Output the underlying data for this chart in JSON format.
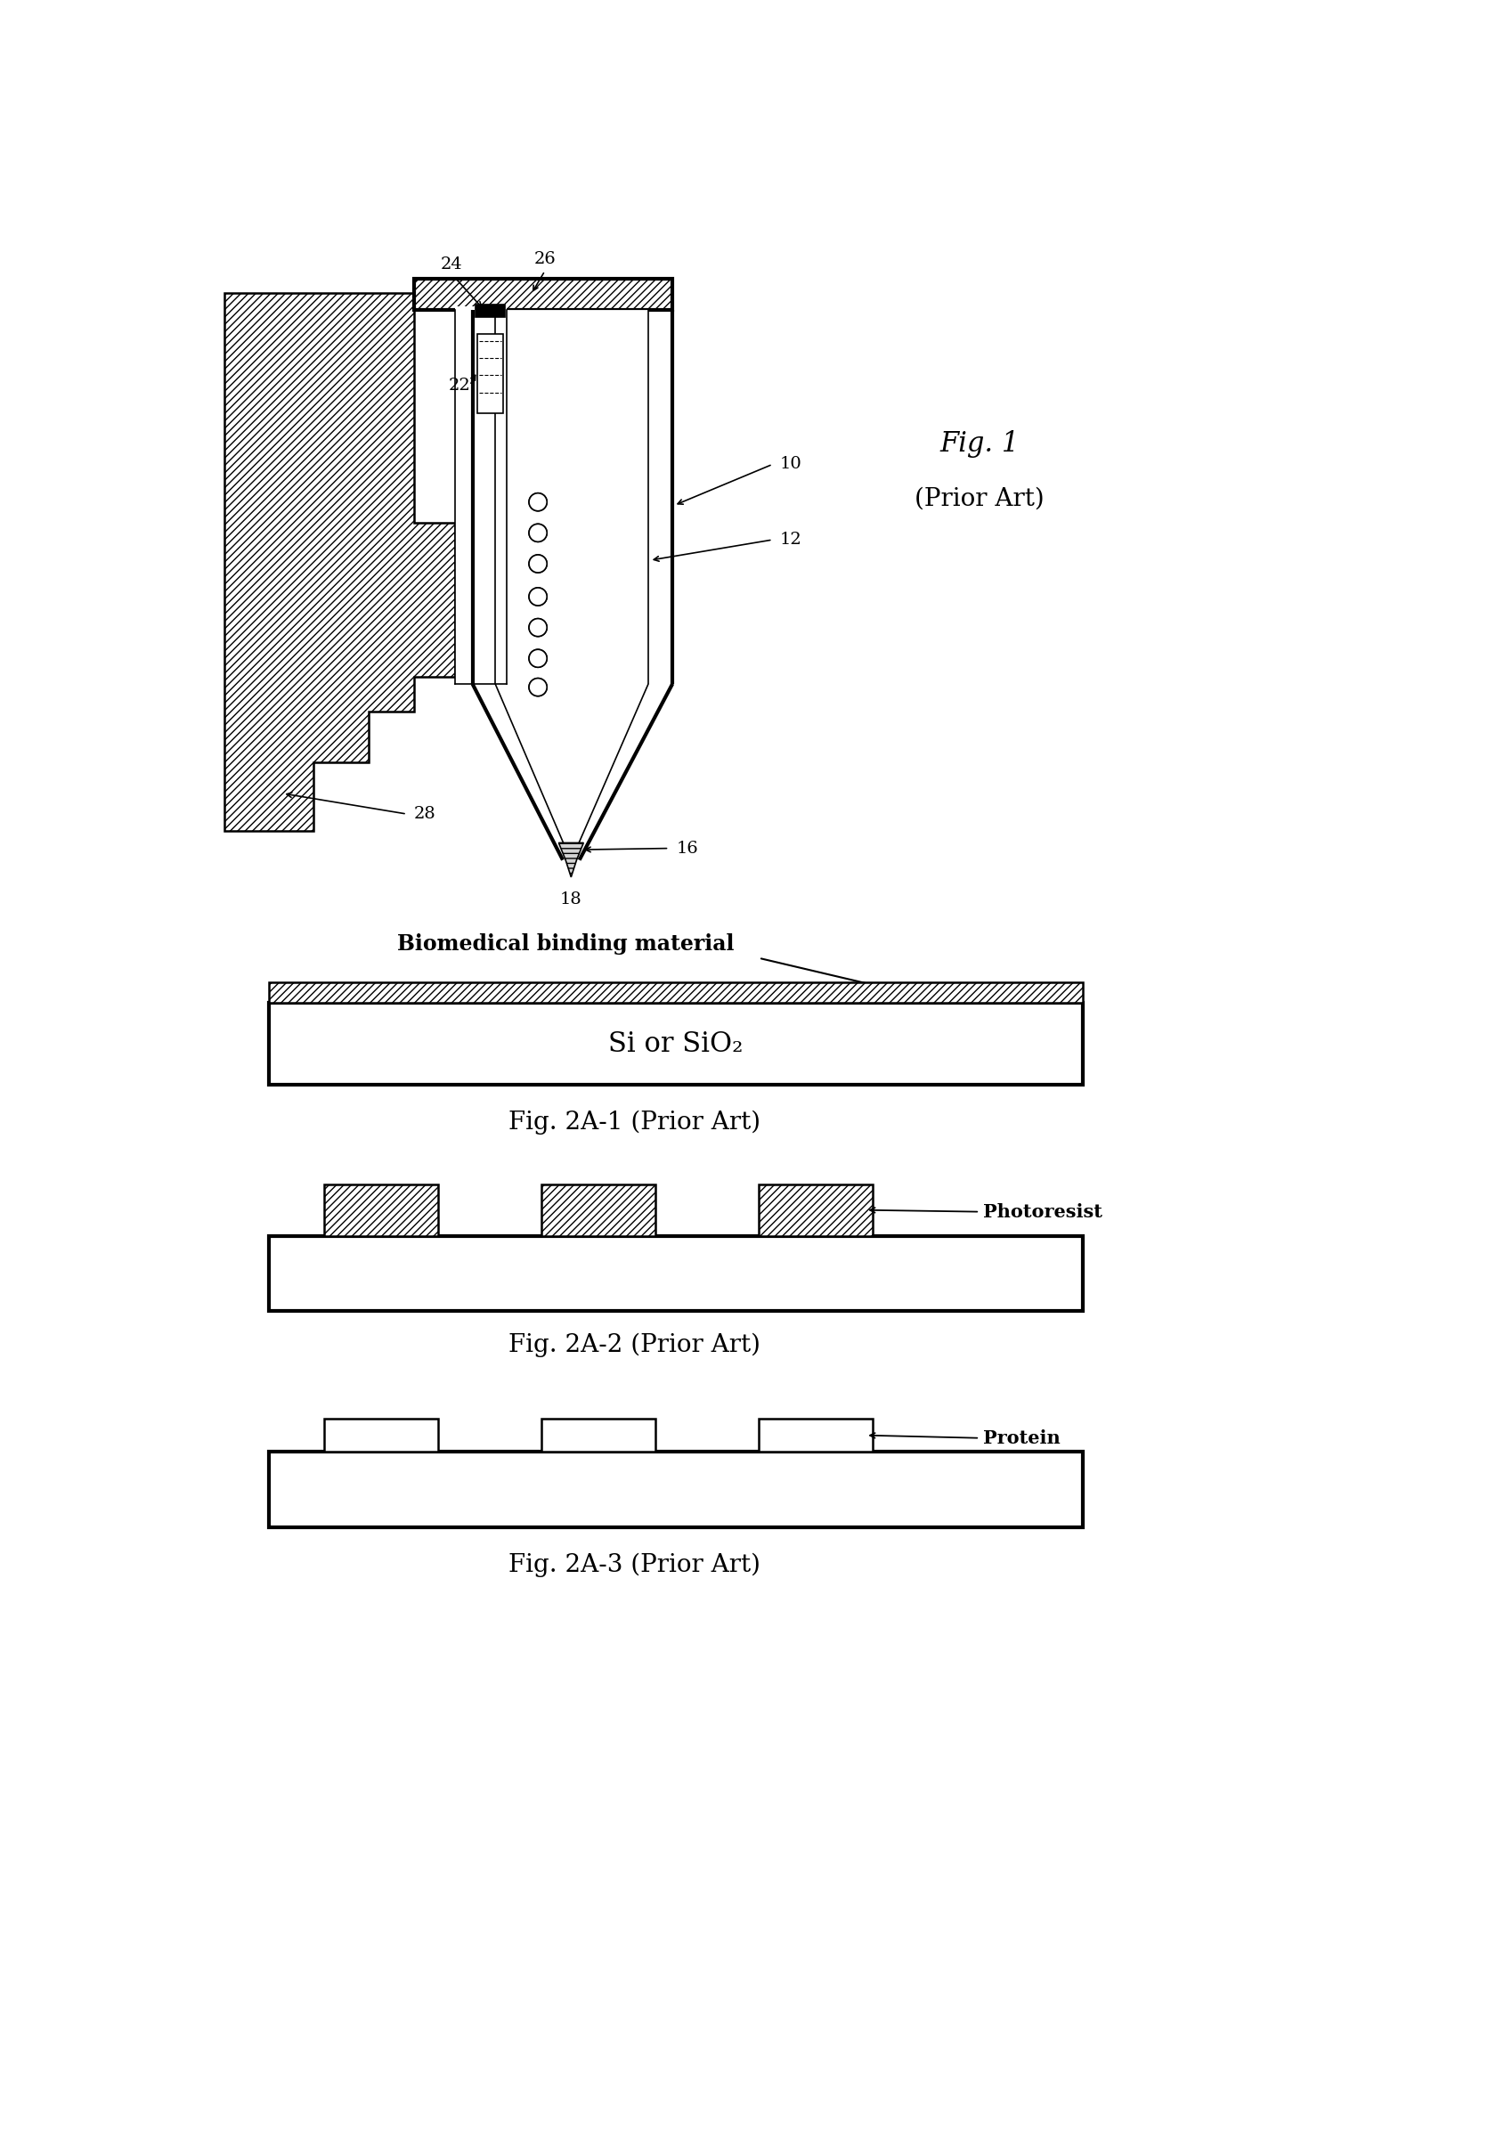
{
  "fig_width": 16.71,
  "fig_height": 23.94,
  "bg_color": "#ffffff",
  "fig1_label": "Fig. 1",
  "fig1_sublabel": "(Prior Art)",
  "fig2a1_label": "Fig. 2A-1 (Prior Art)",
  "fig2a2_label": "Fig. 2A-2 (Prior Art)",
  "fig2a3_label": "Fig. 2A-3 (Prior Art)",
  "biomedical_text": "Biomedical binding material",
  "si_sio2_text": "Si or SiO₂",
  "photoresist_text": "Photoresist",
  "protein_text": "Protein"
}
